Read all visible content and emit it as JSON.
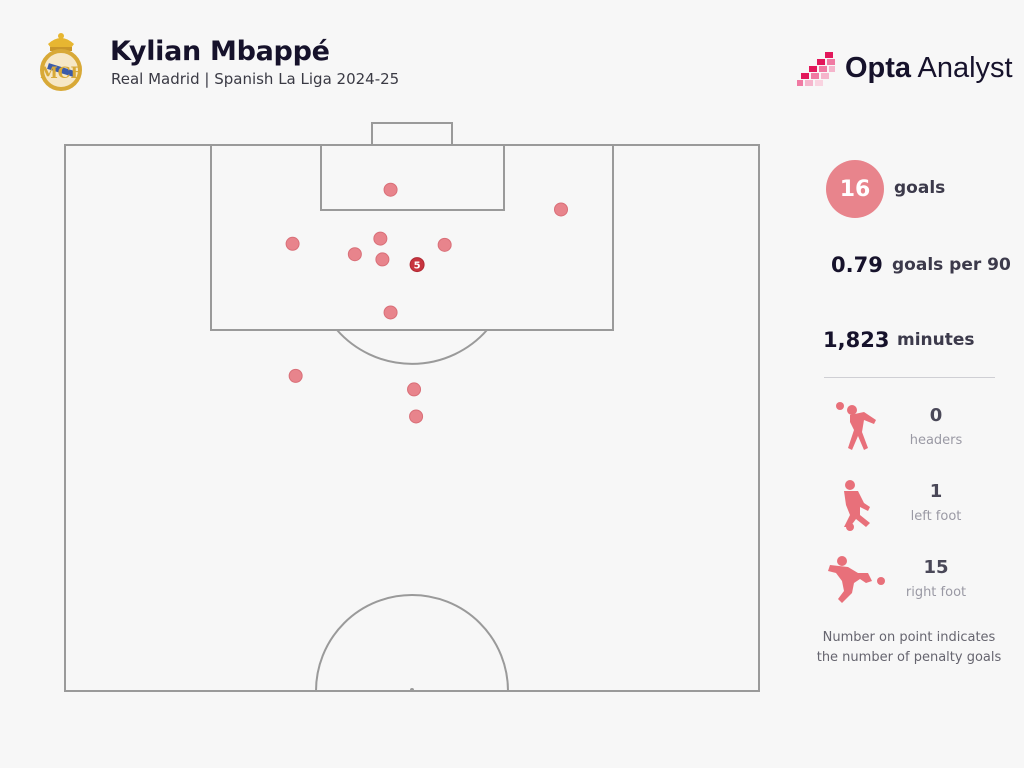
{
  "header": {
    "player": "Kylian Mbappé",
    "subtitle": "Real Madrid | Spanish La Liga 2024-25"
  },
  "brand": {
    "name_bold": "Opta",
    "name_rest": " Analyst",
    "accent_color": "#e2185b"
  },
  "stats": {
    "goals_value": "16",
    "goals_label": "goals",
    "per90_value": "0.79",
    "per90_label": "goals per 90",
    "minutes_value": "1,823",
    "minutes_label": "minutes"
  },
  "goal_types": [
    {
      "value": "0",
      "label": "headers",
      "icon": "header-player-icon"
    },
    {
      "value": "1",
      "label": "left foot",
      "icon": "left-foot-player-icon"
    },
    {
      "value": "15",
      "label": "right foot",
      "icon": "right-foot-player-icon"
    }
  ],
  "note": {
    "line1": "Number on point indicates",
    "line2": "the number of penalty goals"
  },
  "colors": {
    "goal_dot": "#e8848c",
    "goal_dot_stroke": "#d96f78",
    "penalty_dot": "#c8353f",
    "pitch_lines": "#9a9a9a"
  },
  "chart_data": {
    "type": "scatter",
    "description_units": "pitch coordinates: x = metres across pitch width from left touchline (0-68), y = metres from goal line (0-52.5, half pitch)",
    "xlim": [
      0,
      68
    ],
    "ylim": [
      0,
      52.5
    ],
    "points": [
      {
        "x": 31.9,
        "y": 4.3,
        "count": 1
      },
      {
        "x": 48.6,
        "y": 6.2,
        "count": 1
      },
      {
        "x": 22.3,
        "y": 9.5,
        "count": 1
      },
      {
        "x": 30.9,
        "y": 9.0,
        "count": 1
      },
      {
        "x": 37.2,
        "y": 9.6,
        "count": 1
      },
      {
        "x": 28.4,
        "y": 10.5,
        "count": 1
      },
      {
        "x": 31.1,
        "y": 11.0,
        "count": 1
      },
      {
        "x": 34.5,
        "y": 11.5,
        "count": 5,
        "penalty": true,
        "label": "5"
      },
      {
        "x": 31.9,
        "y": 16.1,
        "count": 1
      },
      {
        "x": 22.6,
        "y": 22.2,
        "count": 1
      },
      {
        "x": 34.2,
        "y": 23.5,
        "count": 1
      },
      {
        "x": 34.4,
        "y": 26.1,
        "count": 1
      }
    ]
  }
}
